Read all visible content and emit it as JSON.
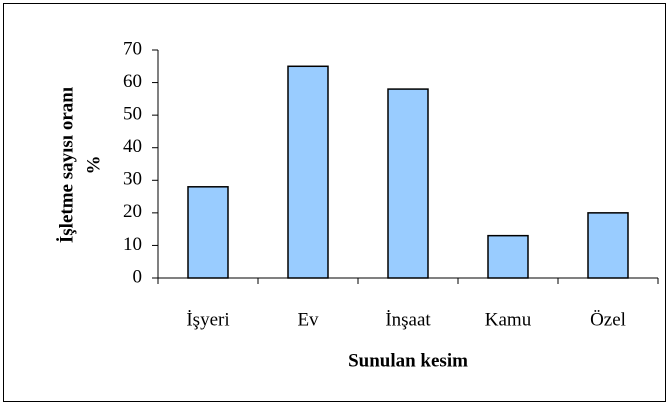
{
  "chart_data": {
    "type": "bar",
    "categories": [
      "İşyeri",
      "Ev",
      "İnşaat",
      "Kamu",
      "Özel"
    ],
    "values": [
      28,
      65,
      58,
      13,
      20
    ],
    "color": "#99ccff",
    "ylim": [
      0,
      70
    ],
    "yticks": [
      0,
      10,
      20,
      30,
      40,
      50,
      60,
      70
    ],
    "grid": false,
    "xlabel": "Sunulan kesim",
    "ylabel": [
      "İşletme sayısı oranı",
      "%"
    ]
  }
}
